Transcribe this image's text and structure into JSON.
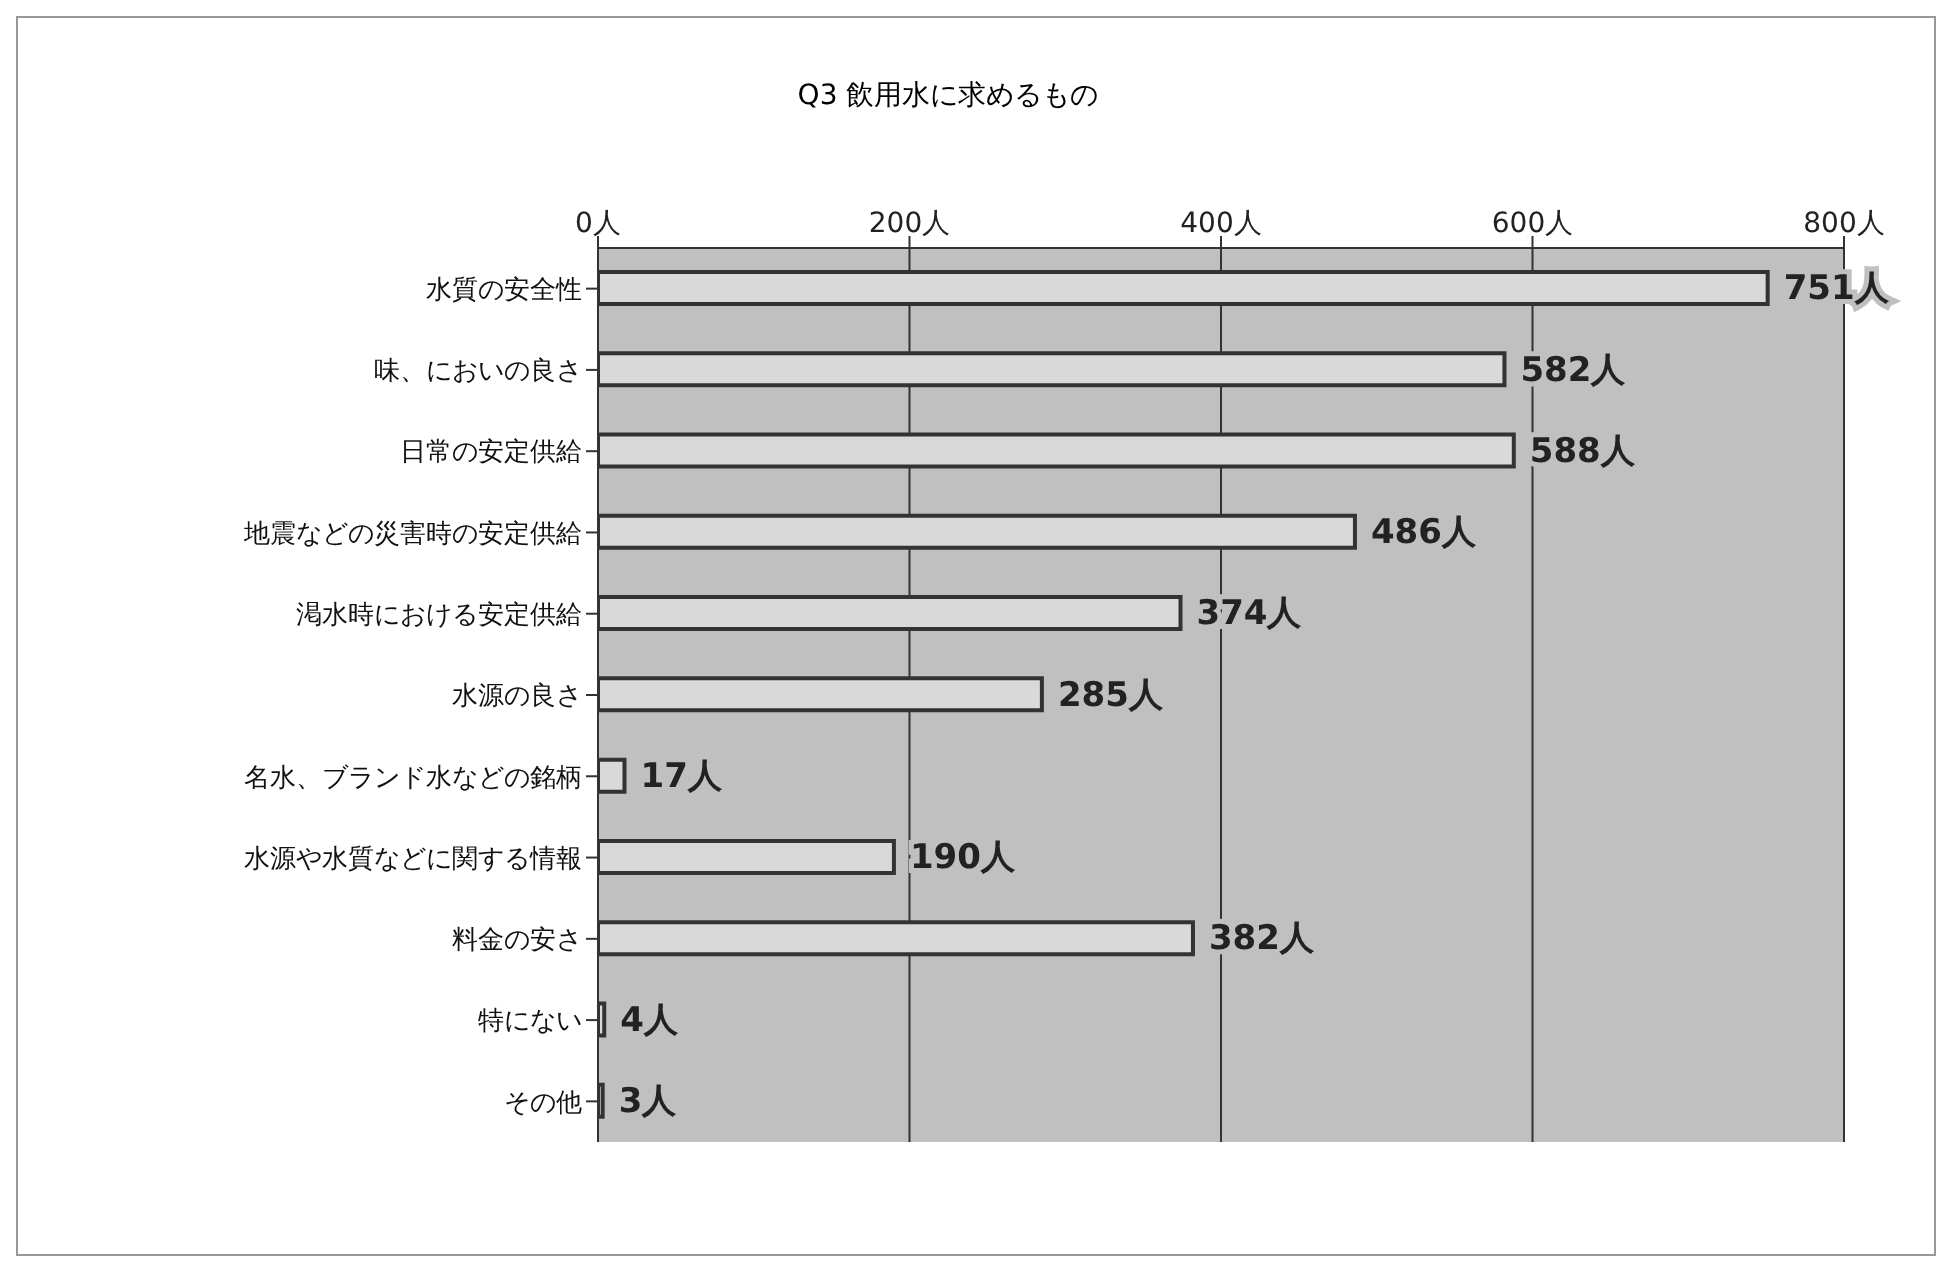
{
  "chart_data": {
    "type": "bar",
    "orientation": "horizontal",
    "title": "Q3 飲用水に求めるもの",
    "categories": [
      "水質の安全性",
      "味、においの良さ",
      "日常の安定供給",
      "地震などの災害時の安定供給",
      "渇水時における安定供給",
      "水源の良さ",
      "名水、ブランド水などの銘柄",
      "水源や水質などに関する情報",
      "料金の安さ",
      "特にない",
      "その他"
    ],
    "values": [
      751,
      582,
      588,
      486,
      374,
      285,
      17,
      190,
      382,
      4,
      3
    ],
    "value_labels": [
      "751人",
      "582人",
      "588人",
      "486人",
      "374人",
      "285人",
      "17人",
      "190人",
      "382人",
      "4人",
      "3人"
    ],
    "color": "#d9d9d9",
    "xlim": [
      0,
      800
    ],
    "xticks": [
      {
        "value": 0,
        "label": "0人"
      },
      {
        "value": 200,
        "label": "200人"
      },
      {
        "value": 400,
        "label": "400人"
      },
      {
        "value": 600,
        "label": "600人"
      },
      {
        "value": 800,
        "label": "800人"
      }
    ],
    "grid": "x"
  }
}
